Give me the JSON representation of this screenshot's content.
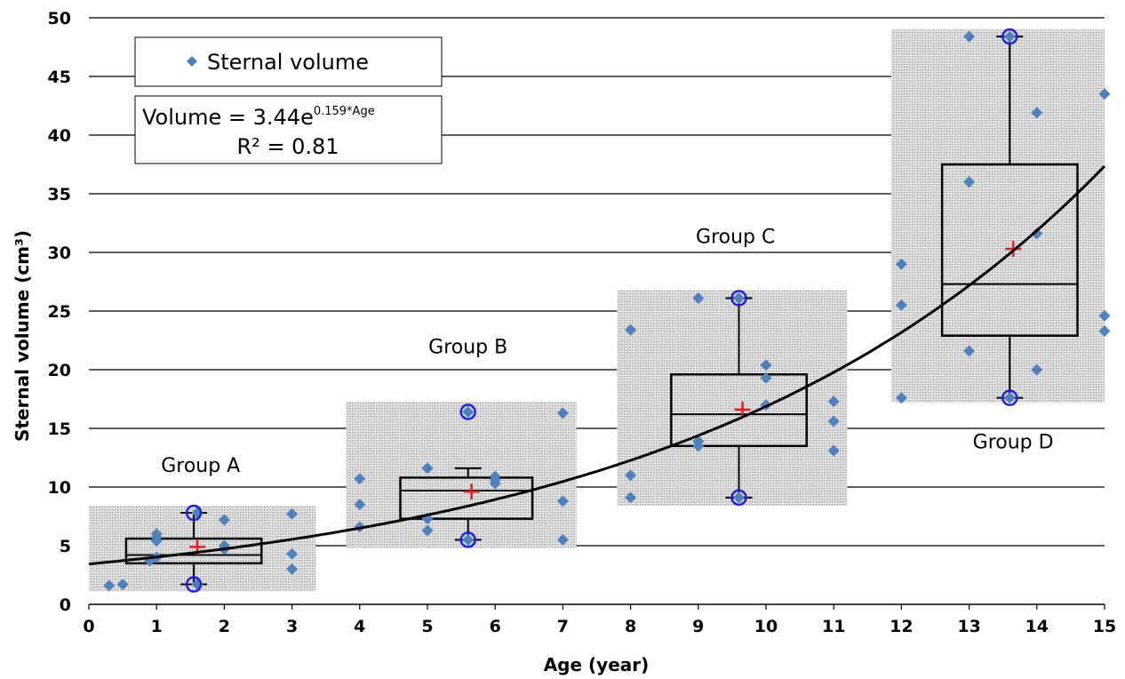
{
  "chart_data": {
    "type": "scatter",
    "xlabel": "Age (year)",
    "ylabel": "Sternal volume (cm³)",
    "xlim": [
      0,
      15
    ],
    "ylim": [
      0,
      50
    ],
    "xticks": [
      0,
      1,
      2,
      3,
      4,
      5,
      6,
      7,
      8,
      9,
      10,
      11,
      12,
      13,
      14,
      15
    ],
    "yticks": [
      0,
      5,
      10,
      15,
      20,
      25,
      30,
      35,
      40,
      45,
      50
    ],
    "grid": "horizontal",
    "legend": {
      "position": "top-left",
      "entries": [
        "Sternal volume"
      ]
    },
    "colors": {
      "points": "#4F81BD",
      "outlier_circle": "#1F1FE0",
      "mean_marker": "#E02020",
      "fit": "#000000",
      "group_shade": "#D0D0D0"
    },
    "series": [
      {
        "name": "Sternal volume",
        "points": [
          [
            0.3,
            1.6
          ],
          [
            0.5,
            1.7
          ],
          [
            0.9,
            3.7
          ],
          [
            1.0,
            4.0
          ],
          [
            1.0,
            5.4
          ],
          [
            1.0,
            5.7
          ],
          [
            1.0,
            6.0
          ],
          [
            1.6,
            7.8
          ],
          [
            1.6,
            1.7
          ],
          [
            2.0,
            4.7
          ],
          [
            2.0,
            5.0
          ],
          [
            2.0,
            7.2
          ],
          [
            3.0,
            3.0
          ],
          [
            3.0,
            4.3
          ],
          [
            3.0,
            7.7
          ],
          [
            4.0,
            6.6
          ],
          [
            4.0,
            8.5
          ],
          [
            4.0,
            10.7
          ],
          [
            5.0,
            6.3
          ],
          [
            5.0,
            7.3
          ],
          [
            5.0,
            11.6
          ],
          [
            5.6,
            5.5
          ],
          [
            5.6,
            16.4
          ],
          [
            6.0,
            10.3
          ],
          [
            6.0,
            10.6
          ],
          [
            6.0,
            10.9
          ],
          [
            7.0,
            5.5
          ],
          [
            7.0,
            8.8
          ],
          [
            7.0,
            16.3
          ],
          [
            8.0,
            9.1
          ],
          [
            8.0,
            11.0
          ],
          [
            8.0,
            23.4
          ],
          [
            9.0,
            13.5
          ],
          [
            9.0,
            13.9
          ],
          [
            9.0,
            26.1
          ],
          [
            9.6,
            9.1
          ],
          [
            9.6,
            26.1
          ],
          [
            10.0,
            17.0
          ],
          [
            10.0,
            19.3
          ],
          [
            10.0,
            20.4
          ],
          [
            11.0,
            13.1
          ],
          [
            11.0,
            15.6
          ],
          [
            11.0,
            17.3
          ],
          [
            12.0,
            17.6
          ],
          [
            12.0,
            25.5
          ],
          [
            12.0,
            29.0
          ],
          [
            13.0,
            21.6
          ],
          [
            13.0,
            36.0
          ],
          [
            13.0,
            48.4
          ],
          [
            13.6,
            17.6
          ],
          [
            13.6,
            48.4
          ],
          [
            14.0,
            20.0
          ],
          [
            14.0,
            31.6
          ],
          [
            14.0,
            41.9
          ],
          [
            15.0,
            23.3
          ],
          [
            15.0,
            24.6
          ],
          [
            15.0,
            43.5
          ]
        ]
      }
    ],
    "fit": {
      "label_line1": "Volume = 3.44e",
      "label_exponent": "0.159*Age",
      "label_line2": "R² = 0.81",
      "a": 3.44,
      "b": 0.159
    },
    "groups": [
      {
        "name": "Group A",
        "shade": {
          "x": [
            0,
            3.35
          ],
          "y": [
            1.1,
            8.4
          ]
        },
        "box": {
          "x": [
            0.55,
            2.55
          ],
          "whisker_x": 1.55,
          "min": 1.7,
          "q1": 3.5,
          "median": 4.2,
          "q3": 5.6,
          "max": 7.8,
          "mean": 4.9
        },
        "outliers": [
          [
            1.55,
            7.8
          ],
          [
            1.55,
            1.7
          ]
        ],
        "label_pos": [
          1.65,
          11.3
        ]
      },
      {
        "name": "Group B",
        "shade": {
          "x": [
            3.8,
            7.2
          ],
          "y": [
            4.8,
            17.3
          ]
        },
        "box": {
          "x": [
            4.6,
            6.55
          ],
          "whisker_x": 5.6,
          "min": 5.5,
          "q1": 7.3,
          "median": 9.7,
          "q3": 10.8,
          "max": 11.6,
          "mean": 9.6
        },
        "outliers": [
          [
            5.6,
            5.5
          ],
          [
            5.6,
            16.4
          ]
        ],
        "label_pos": [
          5.6,
          21.4
        ]
      },
      {
        "name": "Group C",
        "shade": {
          "x": [
            7.8,
            11.2
          ],
          "y": [
            8.4,
            26.8
          ]
        },
        "box": {
          "x": [
            8.6,
            10.6
          ],
          "whisker_x": 9.6,
          "min": 9.1,
          "q1": 13.5,
          "median": 16.2,
          "q3": 19.6,
          "max": 26.1,
          "mean": 16.6
        },
        "outliers": [
          [
            9.6,
            26.1
          ],
          [
            9.6,
            9.1
          ]
        ],
        "label_pos": [
          9.55,
          30.8
        ]
      },
      {
        "name": "Group D",
        "shade": {
          "x": [
            11.85,
            15.0
          ],
          "y": [
            17.2,
            49.0
          ]
        },
        "box": {
          "x": [
            12.6,
            14.6
          ],
          "whisker_x": 13.6,
          "min": 17.6,
          "q1": 22.9,
          "median": 27.3,
          "q3": 37.5,
          "max": 48.4,
          "mean": 30.3
        },
        "outliers": [
          [
            13.6,
            48.4
          ],
          [
            13.6,
            17.6
          ]
        ],
        "label_pos": [
          13.65,
          13.3
        ]
      }
    ]
  }
}
